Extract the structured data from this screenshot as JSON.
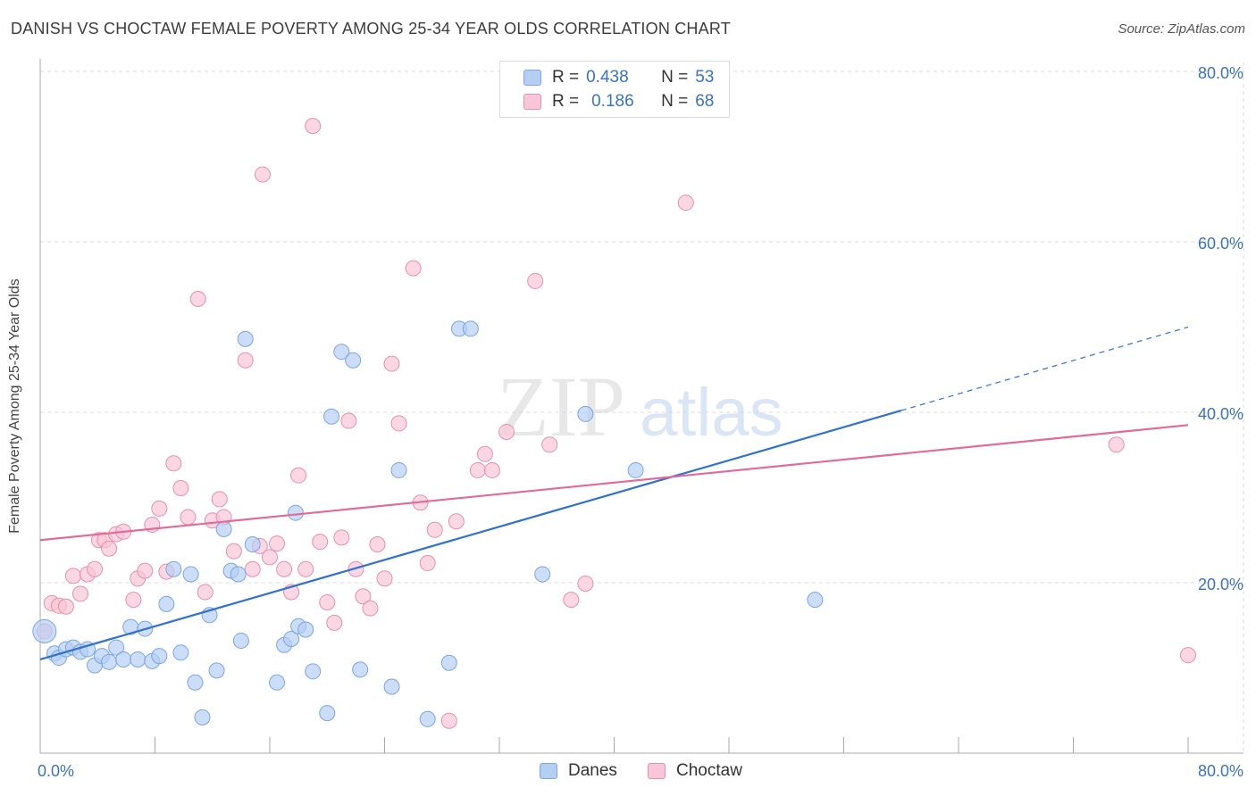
{
  "title": "DANISH VS CHOCTAW FEMALE POVERTY AMONG 25-34 YEAR OLDS CORRELATION CHART",
  "source": "Source: ZipAtlas.com",
  "watermark": {
    "zip": "ZIP",
    "atlas": "atlas"
  },
  "legend_top": {
    "danes": {
      "r_label": "R =",
      "r_value": "0.438",
      "n_label": "N =",
      "n_value": "53"
    },
    "choctaw": {
      "r_label": "R =",
      "r_value": "0.186",
      "n_label": "N =",
      "n_value": "68"
    }
  },
  "legend_bottom": {
    "danes": "Danes",
    "choctaw": "Choctaw"
  },
  "colors": {
    "danes_fill": "#b5cff3",
    "danes_stroke": "#7aa6e3",
    "danes_line": "#2f72cf",
    "choctaw_fill": "#f8c6d6",
    "choctaw_stroke": "#e88fad",
    "choctaw_line": "#e26b97",
    "tick_label": "#3a72c4",
    "grid": "#dddddd"
  },
  "chart_data": {
    "type": "scatter",
    "title": "DANISH VS CHOCTAW FEMALE POVERTY AMONG 25-34 YEAR OLDS CORRELATION CHART",
    "xlabel": "",
    "ylabel": "Female Poverty Among 25-34 Year Olds",
    "xlim": [
      0,
      80
    ],
    "ylim": [
      0,
      80
    ],
    "x_tick_labels": [
      "0.0%",
      "80.0%"
    ],
    "y_ticks": [
      20,
      40,
      60,
      80
    ],
    "y_tick_labels": [
      "20.0%",
      "40.0%",
      "60.0%",
      "80.0%"
    ],
    "grid": true,
    "legend_position": "top-center",
    "series": [
      {
        "name": "Danes",
        "r": 0.438,
        "n": 53,
        "trend": {
          "x0": 0,
          "y0": 11.0,
          "x1": 60,
          "y1": 40.2,
          "dashed_to_x": 80,
          "dashed_to_y": 50.0
        },
        "points": [
          [
            0.3,
            14.3
          ],
          [
            1.0,
            11.7
          ],
          [
            1.3,
            11.2
          ],
          [
            1.8,
            12.2
          ],
          [
            2.3,
            12.4
          ],
          [
            2.8,
            11.9
          ],
          [
            3.3,
            12.2
          ],
          [
            3.8,
            10.3
          ],
          [
            4.3,
            11.4
          ],
          [
            4.8,
            10.7
          ],
          [
            5.3,
            12.4
          ],
          [
            5.8,
            11.0
          ],
          [
            6.3,
            14.8
          ],
          [
            6.8,
            11.0
          ],
          [
            7.3,
            14.6
          ],
          [
            7.8,
            10.8
          ],
          [
            8.3,
            11.4
          ],
          [
            8.8,
            17.5
          ],
          [
            9.3,
            21.6
          ],
          [
            9.8,
            11.8
          ],
          [
            10.5,
            21.0
          ],
          [
            10.8,
            8.3
          ],
          [
            11.3,
            4.2
          ],
          [
            11.8,
            16.2
          ],
          [
            12.3,
            9.7
          ],
          [
            12.8,
            26.3
          ],
          [
            13.3,
            21.4
          ],
          [
            13.8,
            21.0
          ],
          [
            14.0,
            13.2
          ],
          [
            14.3,
            48.6
          ],
          [
            14.8,
            24.5
          ],
          [
            16.5,
            8.3
          ],
          [
            17.0,
            12.7
          ],
          [
            17.5,
            13.4
          ],
          [
            17.8,
            28.2
          ],
          [
            18.0,
            14.9
          ],
          [
            18.5,
            14.5
          ],
          [
            19.0,
            9.6
          ],
          [
            20.0,
            4.7
          ],
          [
            20.3,
            39.5
          ],
          [
            21.0,
            47.1
          ],
          [
            21.8,
            46.1
          ],
          [
            22.3,
            9.8
          ],
          [
            24.5,
            7.8
          ],
          [
            25.0,
            33.2
          ],
          [
            27.0,
            4.0
          ],
          [
            28.5,
            10.6
          ],
          [
            29.2,
            49.8
          ],
          [
            30.0,
            49.8
          ],
          [
            35.0,
            21.0
          ],
          [
            38.0,
            39.8
          ],
          [
            41.5,
            33.2
          ],
          [
            54.0,
            18.0
          ]
        ]
      },
      {
        "name": "Choctaw",
        "r": 0.186,
        "n": 68,
        "trend": {
          "x0": 0,
          "y0": 25.0,
          "x1": 80,
          "y1": 38.5
        },
        "points": [
          [
            0.3,
            14.3
          ],
          [
            0.8,
            17.6
          ],
          [
            1.3,
            17.3
          ],
          [
            1.8,
            17.2
          ],
          [
            2.3,
            20.8
          ],
          [
            2.8,
            18.7
          ],
          [
            3.3,
            21.0
          ],
          [
            3.8,
            21.6
          ],
          [
            4.1,
            25.0
          ],
          [
            4.5,
            25.0
          ],
          [
            4.8,
            24.0
          ],
          [
            5.3,
            25.7
          ],
          [
            5.8,
            26.0
          ],
          [
            6.5,
            18.0
          ],
          [
            6.8,
            20.5
          ],
          [
            7.3,
            21.4
          ],
          [
            7.8,
            26.8
          ],
          [
            8.3,
            28.7
          ],
          [
            8.8,
            21.3
          ],
          [
            9.3,
            34.0
          ],
          [
            9.8,
            31.1
          ],
          [
            10.3,
            27.7
          ],
          [
            11.0,
            53.3
          ],
          [
            11.5,
            18.9
          ],
          [
            12.0,
            27.3
          ],
          [
            12.5,
            29.8
          ],
          [
            12.8,
            27.7
          ],
          [
            13.5,
            23.7
          ],
          [
            14.3,
            46.1
          ],
          [
            14.8,
            21.6
          ],
          [
            15.3,
            24.3
          ],
          [
            15.5,
            67.9
          ],
          [
            16.0,
            23.0
          ],
          [
            16.5,
            24.6
          ],
          [
            17.0,
            21.6
          ],
          [
            17.5,
            18.9
          ],
          [
            18.0,
            32.6
          ],
          [
            18.5,
            21.6
          ],
          [
            19.0,
            73.6
          ],
          [
            19.5,
            24.8
          ],
          [
            20.0,
            17.7
          ],
          [
            20.5,
            15.3
          ],
          [
            21.0,
            25.3
          ],
          [
            21.5,
            39.0
          ],
          [
            22.0,
            21.6
          ],
          [
            22.5,
            18.4
          ],
          [
            23.0,
            17.0
          ],
          [
            23.5,
            24.5
          ],
          [
            24.0,
            20.5
          ],
          [
            24.5,
            45.7
          ],
          [
            25.0,
            38.7
          ],
          [
            26.0,
            56.9
          ],
          [
            26.5,
            29.4
          ],
          [
            27.0,
            22.3
          ],
          [
            27.5,
            26.2
          ],
          [
            28.5,
            3.8
          ],
          [
            29.0,
            27.2
          ],
          [
            30.5,
            33.2
          ],
          [
            31.0,
            35.1
          ],
          [
            31.5,
            33.2
          ],
          [
            32.5,
            37.7
          ],
          [
            34.5,
            55.4
          ],
          [
            35.5,
            36.2
          ],
          [
            37.0,
            18.0
          ],
          [
            38.0,
            19.9
          ],
          [
            45.0,
            64.6
          ],
          [
            75.0,
            36.2
          ],
          [
            80.0,
            11.5
          ]
        ]
      }
    ]
  }
}
